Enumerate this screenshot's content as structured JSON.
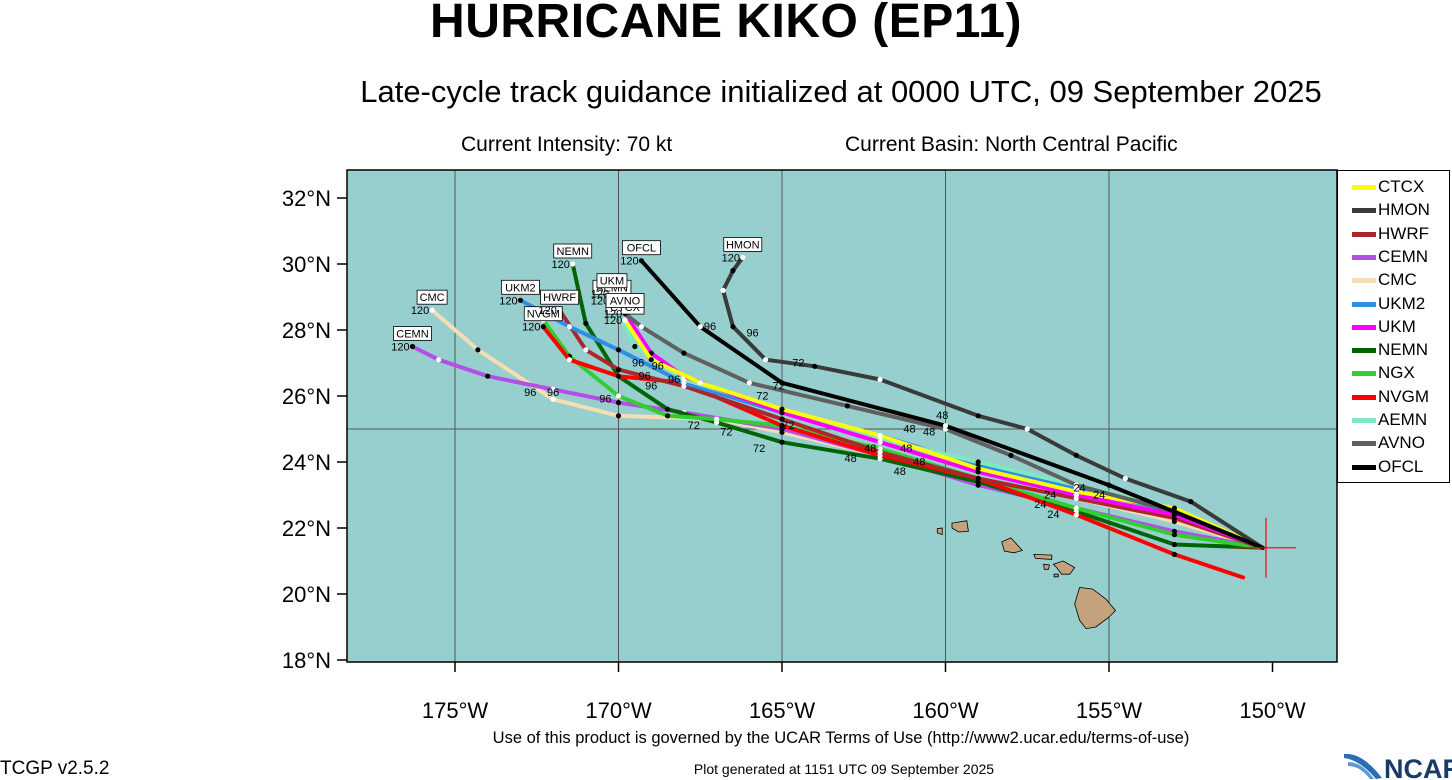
{
  "header": {
    "title": "HURRICANE KIKO (EP11)",
    "subtitle": "Late-cycle track guidance initialized at 0000 UTC, 09 September 2025",
    "intensity": "Current Intensity: 70 kt",
    "basin": "Current Basin: North Central Pacific"
  },
  "footer": {
    "terms": "Use of this product is governed by the UCAR Terms of Use (http://www2.ucar.edu/terms-of-use)",
    "version": "TCGP v2.5.2",
    "generated": "Plot generated at 1151 UTC   09 September 2025",
    "logo_text": "NCAR"
  },
  "colors": {
    "ocean": "#97cfcf",
    "land": "#c4a27c",
    "grid": "#555555",
    "storm_marker": "#ff0000"
  },
  "map": {
    "lon_range": [
      -178.5,
      -148
    ],
    "lat_range": [
      17.5,
      32.9
    ],
    "lon_ticks": [
      -175,
      -170,
      -165,
      -160,
      -155,
      -150
    ],
    "lon_tick_labels": [
      "175°W",
      "170°W",
      "165°W",
      "160°W",
      "155°W",
      "150°W"
    ],
    "lat_ticks": [
      18,
      20,
      22,
      24,
      26,
      28,
      30,
      32
    ],
    "lat_tick_labels": [
      "18°N",
      "20°N",
      "22°N",
      "24°N",
      "26°N",
      "28°N",
      "30°N",
      "32°N"
    ],
    "gridlines": {
      "lon": [
        -175,
        -170,
        -165,
        -160,
        -155
      ],
      "lat": [
        25
      ]
    },
    "storm_position": {
      "lon": -150.2,
      "lat": 21.4
    },
    "islands": [
      {
        "name": "Hawaii",
        "points": [
          [
            -155.9,
            20.2
          ],
          [
            -155.5,
            20.15
          ],
          [
            -155.1,
            19.85
          ],
          [
            -154.8,
            19.5
          ],
          [
            -155.0,
            19.3
          ],
          [
            -155.4,
            19.0
          ],
          [
            -155.7,
            18.95
          ],
          [
            -155.9,
            19.2
          ],
          [
            -156.05,
            19.7
          ],
          [
            -155.9,
            20.2
          ]
        ]
      },
      {
        "name": "Maui",
        "points": [
          [
            -156.7,
            20.9
          ],
          [
            -156.4,
            21.0
          ],
          [
            -156.05,
            20.8
          ],
          [
            -156.2,
            20.6
          ],
          [
            -156.45,
            20.6
          ],
          [
            -156.6,
            20.8
          ],
          [
            -156.7,
            20.9
          ]
        ]
      },
      {
        "name": "Molokai",
        "points": [
          [
            -157.3,
            21.2
          ],
          [
            -156.75,
            21.18
          ],
          [
            -156.75,
            21.05
          ],
          [
            -157.25,
            21.08
          ],
          [
            -157.3,
            21.2
          ]
        ]
      },
      {
        "name": "Oahu",
        "points": [
          [
            -158.28,
            21.58
          ],
          [
            -158.0,
            21.7
          ],
          [
            -157.65,
            21.32
          ],
          [
            -157.9,
            21.25
          ],
          [
            -158.2,
            21.3
          ],
          [
            -158.28,
            21.58
          ]
        ]
      },
      {
        "name": "Kauai",
        "points": [
          [
            -159.8,
            22.15
          ],
          [
            -159.35,
            22.22
          ],
          [
            -159.3,
            21.9
          ],
          [
            -159.6,
            21.88
          ],
          [
            -159.8,
            22.0
          ],
          [
            -159.8,
            22.15
          ]
        ]
      },
      {
        "name": "Lanai",
        "points": [
          [
            -157.0,
            20.9
          ],
          [
            -156.82,
            20.88
          ],
          [
            -156.85,
            20.75
          ],
          [
            -156.98,
            20.75
          ],
          [
            -157.0,
            20.9
          ]
        ]
      },
      {
        "name": "Niihau",
        "points": [
          [
            -160.25,
            21.98
          ],
          [
            -160.1,
            22.0
          ],
          [
            -160.1,
            21.8
          ],
          [
            -160.25,
            21.85
          ],
          [
            -160.25,
            21.98
          ]
        ]
      },
      {
        "name": "Kahoolawe",
        "points": [
          [
            -156.68,
            20.6
          ],
          [
            -156.55,
            20.6
          ],
          [
            -156.55,
            20.52
          ],
          [
            -156.68,
            20.52
          ],
          [
            -156.68,
            20.6
          ]
        ]
      }
    ]
  },
  "legend": [
    {
      "name": "CTCX",
      "color": "#ffff00"
    },
    {
      "name": "HMON",
      "color": "#3a3a3a"
    },
    {
      "name": "HWRF",
      "color": "#a8282c"
    },
    {
      "name": "CEMN",
      "color": "#b44ee6"
    },
    {
      "name": "CMC",
      "color": "#f5deb3"
    },
    {
      "name": "UKM2",
      "color": "#2e8ee6"
    },
    {
      "name": "UKM",
      "color": "#ff00ff"
    },
    {
      "name": "NEMN",
      "color": "#006400"
    },
    {
      "name": "NGX",
      "color": "#32cd32"
    },
    {
      "name": "NVGM",
      "color": "#ff0000"
    },
    {
      "name": "AEMN",
      "color": "#7fe8c0"
    },
    {
      "name": "AVNO",
      "color": "#606060"
    },
    {
      "name": "OFCL",
      "color": "#000000"
    }
  ],
  "tracks": [
    {
      "name": "CMC",
      "color": "#f5deb3",
      "label": {
        "text": "CMC",
        "hour": "120"
      },
      "points": [
        [
          -150.3,
          21.4
        ],
        [
          -153,
          22.2
        ],
        [
          -156,
          22.9
        ],
        [
          -159,
          23.5
        ],
        [
          -162,
          24.2
        ],
        [
          -165,
          24.9
        ],
        [
          -167,
          25.3
        ],
        [
          -170,
          25.4
        ],
        [
          -172,
          25.9
        ],
        [
          -174.3,
          27.4
        ],
        [
          -175.7,
          28.6
        ]
      ]
    },
    {
      "name": "CEMN",
      "color": "#b44ee6",
      "label": {
        "text": "CEMN",
        "hour": "120"
      },
      "points": [
        [
          -150.3,
          21.4
        ],
        [
          -153,
          21.9
        ],
        [
          -156,
          22.6
        ],
        [
          -159,
          23.3
        ],
        [
          -162,
          24.2
        ],
        [
          -165,
          25.0
        ],
        [
          -168,
          25.5
        ],
        [
          -170,
          25.8
        ],
        [
          -172,
          26.2
        ],
        [
          -174,
          26.6
        ],
        [
          -175.5,
          27.1
        ],
        [
          -176.3,
          27.5
        ]
      ]
    },
    {
      "name": "NEMN",
      "color": "#006400",
      "label": {
        "text": "NEMN",
        "hour": "120"
      },
      "points": [
        [
          -150.3,
          21.4
        ],
        [
          -153,
          21.5
        ],
        [
          -156,
          22.5
        ],
        [
          -159,
          23.4
        ],
        [
          -162,
          24.1
        ],
        [
          -165,
          24.6
        ],
        [
          -167,
          25.2
        ],
        [
          -168.5,
          25.6
        ],
        [
          -170,
          26.6
        ],
        [
          -171,
          28.2
        ],
        [
          -171.4,
          30.0
        ]
      ]
    },
    {
      "name": "NGX",
      "color": "#32cd32",
      "label": null,
      "points": [
        [
          -150.3,
          21.4
        ],
        [
          -153,
          21.8
        ],
        [
          -156,
          22.6
        ],
        [
          -159,
          23.5
        ],
        [
          -162,
          24.4
        ],
        [
          -165,
          25.1
        ],
        [
          -167,
          25.3
        ],
        [
          -168.5,
          25.4
        ],
        [
          -170,
          26.0
        ],
        [
          -171.5,
          27.2
        ],
        [
          -172.3,
          28.3
        ]
      ]
    },
    {
      "name": "NVGM",
      "color": "#ff0000",
      "label": {
        "text": "NVGM",
        "hour": "120"
      },
      "points": [
        [
          -150.9,
          20.5
        ],
        [
          -153,
          21.2
        ],
        [
          -156,
          22.4
        ],
        [
          -159,
          23.5
        ],
        [
          -162,
          24.2
        ],
        [
          -165,
          25.1
        ],
        [
          -168,
          26.4
        ],
        [
          -170,
          26.6
        ],
        [
          -171.5,
          27.1
        ],
        [
          -172.3,
          28.1
        ]
      ]
    },
    {
      "name": "HWRF",
      "color": "#a8282c",
      "label": {
        "text": "HWRF",
        "hour": "120"
      },
      "points": [
        [
          -150.3,
          21.4
        ],
        [
          -153,
          22.3
        ],
        [
          -156,
          22.9
        ],
        [
          -159,
          23.5
        ],
        [
          -162,
          24.3
        ],
        [
          -165,
          25.3
        ],
        [
          -168,
          26.3
        ],
        [
          -170,
          26.8
        ],
        [
          -171,
          27.4
        ],
        [
          -171.8,
          28.6
        ]
      ]
    },
    {
      "name": "UKM2",
      "color": "#2e8ee6",
      "label": {
        "text": "UKM2",
        "hour": "120"
      },
      "points": [
        [
          -150.3,
          21.4
        ],
        [
          -153,
          22.5
        ],
        [
          -156,
          23.2
        ],
        [
          -159,
          23.9
        ],
        [
          -162,
          24.8
        ],
        [
          -165,
          25.5
        ],
        [
          -168,
          26.4
        ],
        [
          -170,
          27.4
        ],
        [
          -171.5,
          28.1
        ],
        [
          -173,
          28.9
        ]
      ]
    },
    {
      "name": "AEMN",
      "color": "#7fe8c0",
      "label": {
        "text": "AEMN",
        "hour": "120"
      },
      "points": [
        [
          -150.3,
          21.4
        ],
        [
          -153,
          22.6
        ],
        [
          -156,
          23.3
        ],
        [
          -159,
          24.0
        ],
        [
          -162,
          24.7
        ],
        [
          -165,
          25.6
        ],
        [
          -168,
          26.5
        ],
        [
          -169.5,
          27.5
        ],
        [
          -170.2,
          28.9
        ]
      ]
    },
    {
      "name": "UKM",
      "color": "#ff00ff",
      "label": {
        "text": "UKM",
        "hour": "120"
      },
      "points": [
        [
          -150.3,
          21.4
        ],
        [
          -153,
          22.4
        ],
        [
          -156,
          23.0
        ],
        [
          -159,
          23.7
        ],
        [
          -162,
          24.6
        ],
        [
          -165,
          25.5
        ],
        [
          -168,
          26.6
        ],
        [
          -169,
          27.3
        ],
        [
          -169.8,
          28.5
        ],
        [
          -170.2,
          29.1
        ]
      ]
    },
    {
      "name": "CTCX",
      "color": "#ffff00",
      "label": {
        "text": "CTCX",
        "hour": "120"
      },
      "points": [
        [
          -150.3,
          21.4
        ],
        [
          -153,
          22.6
        ],
        [
          -156,
          23.1
        ],
        [
          -159,
          23.8
        ],
        [
          -162,
          24.8
        ],
        [
          -165,
          25.6
        ],
        [
          -167.5,
          26.4
        ],
        [
          -169,
          27.1
        ],
        [
          -169.8,
          28.3
        ]
      ]
    },
    {
      "name": "AVNO",
      "color": "#606060",
      "label": {
        "text": "AVNO",
        "hour": "120"
      },
      "points": [
        [
          -150.3,
          21.4
        ],
        [
          -153,
          22.5
        ],
        [
          -156,
          23.3
        ],
        [
          -158,
          24.2
        ],
        [
          -160,
          25.0
        ],
        [
          -163,
          25.7
        ],
        [
          -166,
          26.4
        ],
        [
          -168,
          27.3
        ],
        [
          -169.3,
          28.1
        ],
        [
          -169.8,
          28.5
        ]
      ]
    },
    {
      "name": "HMON",
      "color": "#3a3a3a",
      "label": {
        "text": "HMON",
        "hour": "120"
      },
      "points": [
        [
          -150.3,
          21.4
        ],
        [
          -152.5,
          22.8
        ],
        [
          -154.5,
          23.5
        ],
        [
          -156,
          24.2
        ],
        [
          -157.5,
          25.0
        ],
        [
          -159,
          25.4
        ],
        [
          -162,
          26.5
        ],
        [
          -164,
          26.9
        ],
        [
          -165.5,
          27.1
        ],
        [
          -166.5,
          28.1
        ],
        [
          -166.8,
          29.2
        ],
        [
          -166.5,
          29.8
        ],
        [
          -166.2,
          30.2
        ]
      ]
    },
    {
      "name": "OFCL",
      "color": "#000000",
      "label": {
        "text": "OFCL",
        "hour": "120"
      },
      "points": [
        [
          -150.3,
          21.4
        ],
        [
          -155,
          23.3
        ],
        [
          -160,
          25.1
        ],
        [
          -165,
          26.4
        ],
        [
          -167.5,
          28.1
        ],
        [
          -169.3,
          30.1
        ]
      ]
    }
  ],
  "forecast_hour_labels": [
    {
      "text": "96",
      "lon": -167.2,
      "lat": 28.0
    },
    {
      "text": "96",
      "lon": -165.9,
      "lat": 27.8
    },
    {
      "text": "96",
      "lon": -169.4,
      "lat": 26.9
    },
    {
      "text": "96",
      "lon": -168.8,
      "lat": 26.8
    },
    {
      "text": "96",
      "lon": -169.2,
      "lat": 26.5
    },
    {
      "text": "96",
      "lon": -168.3,
      "lat": 26.4
    },
    {
      "text": "96",
      "lon": -169.0,
      "lat": 26.2
    },
    {
      "text": "96",
      "lon": -170.4,
      "lat": 25.8
    },
    {
      "text": "96",
      "lon": -172.7,
      "lat": 26.0
    },
    {
      "text": "96",
      "lon": -172.0,
      "lat": 26.0
    },
    {
      "text": "72",
      "lon": -165.1,
      "lat": 26.2
    },
    {
      "text": "72",
      "lon": -164.5,
      "lat": 26.9
    },
    {
      "text": "72",
      "lon": -165.6,
      "lat": 25.9
    },
    {
      "text": "72",
      "lon": -164.8,
      "lat": 25.0
    },
    {
      "text": "72",
      "lon": -167.7,
      "lat": 25.0
    },
    {
      "text": "72",
      "lon": -166.7,
      "lat": 24.8
    },
    {
      "text": "72",
      "lon": -165.7,
      "lat": 24.3
    },
    {
      "text": "48",
      "lon": -160.1,
      "lat": 25.3
    },
    {
      "text": "48",
      "lon": -161.1,
      "lat": 24.9
    },
    {
      "text": "48",
      "lon": -160.5,
      "lat": 24.8
    },
    {
      "text": "48",
      "lon": -161.2,
      "lat": 24.3
    },
    {
      "text": "48",
      "lon": -162.3,
      "lat": 24.3
    },
    {
      "text": "48",
      "lon": -162.9,
      "lat": 24.0
    },
    {
      "text": "48",
      "lon": -161.4,
      "lat": 23.6
    },
    {
      "text": "48",
      "lon": -160.8,
      "lat": 23.9
    },
    {
      "text": "24",
      "lon": -155.9,
      "lat": 23.1
    },
    {
      "text": "24",
      "lon": -156.8,
      "lat": 22.9
    },
    {
      "text": "24",
      "lon": -155.3,
      "lat": 22.9
    },
    {
      "text": "24",
      "lon": -157.1,
      "lat": 22.6
    },
    {
      "text": "24",
      "lon": -156.7,
      "lat": 22.3
    }
  ]
}
